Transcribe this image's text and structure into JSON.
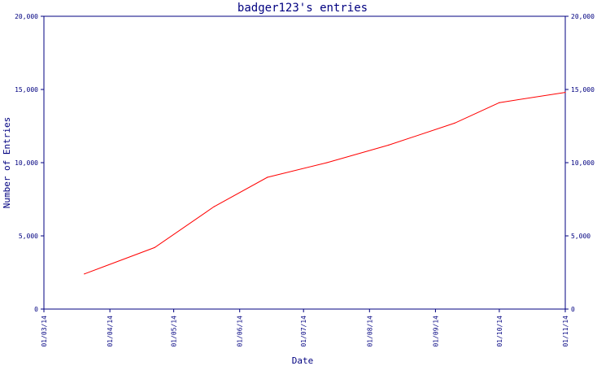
{
  "chart_data": {
    "type": "line",
    "title": "badger123's entries",
    "xlabel": "Date",
    "ylabel": "Number of Entries",
    "x_ticks": [
      "01/03/14",
      "01/04/14",
      "01/05/14",
      "01/06/14",
      "01/07/14",
      "01/08/14",
      "01/09/14",
      "01/10/14",
      "01/11/14"
    ],
    "y_ticks": [
      "0",
      "5,000",
      "10,000",
      "15,000",
      "20,000"
    ],
    "xlim": [
      "2014-03-01",
      "2014-11-01"
    ],
    "ylim": [
      0,
      20000
    ],
    "grid": false,
    "colors": {
      "axis": "#000080",
      "series": "#ff0000",
      "background": "#ffffff"
    },
    "series": [
      {
        "x": [
          "2014-03-20",
          "2014-04-22",
          "2014-05-20",
          "2014-06-14",
          "2014-07-12",
          "2014-08-10",
          "2014-09-10",
          "2014-10-01",
          "2014-11-01"
        ],
        "values": [
          2400,
          4200,
          7000,
          9000,
          10000,
          11200,
          12700,
          14100,
          14800
        ]
      }
    ]
  }
}
